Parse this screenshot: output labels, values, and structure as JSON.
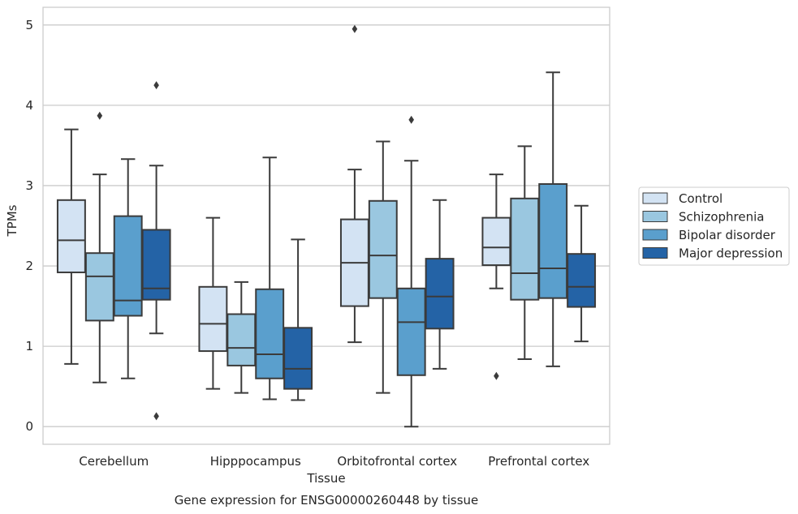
{
  "chart_data": {
    "type": "box",
    "title": "Gene expression for ENSG00000260448 by tissue",
    "xlabel": "Tissue",
    "ylabel": "TPMs",
    "ylim": [
      -0.22,
      5.22
    ],
    "yticks": [
      0,
      1,
      2,
      3,
      4,
      5
    ],
    "grid": "horizontal",
    "legend_position": "right",
    "categories": [
      "Cerebellum",
      "Hipppocampus",
      "Orbitofrontal cortex",
      "Prefrontal cortex"
    ],
    "series": [
      {
        "name": "Control",
        "color": "#d3e3f3",
        "boxes": [
          {
            "whislo": 0.78,
            "q1": 1.92,
            "med": 2.32,
            "q3": 2.82,
            "whishi": 3.7,
            "fliers": []
          },
          {
            "whislo": 0.47,
            "q1": 0.94,
            "med": 1.28,
            "q3": 1.74,
            "whishi": 2.6,
            "fliers": []
          },
          {
            "whislo": 1.05,
            "q1": 1.5,
            "med": 2.04,
            "q3": 2.58,
            "whishi": 3.2,
            "fliers": [
              4.95
            ]
          },
          {
            "whislo": 1.72,
            "q1": 2.01,
            "med": 2.23,
            "q3": 2.6,
            "whishi": 3.14,
            "fliers": [
              0.63
            ]
          }
        ]
      },
      {
        "name": "Schizophrenia",
        "color": "#9ac7e0",
        "boxes": [
          {
            "whislo": 0.55,
            "q1": 1.32,
            "med": 1.87,
            "q3": 2.16,
            "whishi": 3.14,
            "fliers": [
              3.87
            ]
          },
          {
            "whislo": 0.42,
            "q1": 0.76,
            "med": 0.98,
            "q3": 1.4,
            "whishi": 1.8,
            "fliers": []
          },
          {
            "whislo": 0.42,
            "q1": 1.6,
            "med": 2.13,
            "q3": 2.81,
            "whishi": 3.55,
            "fliers": []
          },
          {
            "whislo": 0.84,
            "q1": 1.58,
            "med": 1.91,
            "q3": 2.84,
            "whishi": 3.49,
            "fliers": []
          }
        ]
      },
      {
        "name": "Bipolar disorder",
        "color": "#5a9fcd",
        "boxes": [
          {
            "whislo": 0.6,
            "q1": 1.38,
            "med": 1.57,
            "q3": 2.62,
            "whishi": 3.33,
            "fliers": []
          },
          {
            "whislo": 0.34,
            "q1": 0.6,
            "med": 0.9,
            "q3": 1.71,
            "whishi": 3.35,
            "fliers": []
          },
          {
            "whislo": 0.0,
            "q1": 0.64,
            "med": 1.3,
            "q3": 1.72,
            "whishi": 3.31,
            "fliers": [
              3.82
            ]
          },
          {
            "whislo": 0.75,
            "q1": 1.6,
            "med": 1.97,
            "q3": 3.02,
            "whishi": 4.41,
            "fliers": []
          }
        ]
      },
      {
        "name": "Major depression",
        "color": "#2463a6",
        "boxes": [
          {
            "whislo": 1.16,
            "q1": 1.58,
            "med": 1.72,
            "q3": 2.45,
            "whishi": 3.25,
            "fliers": [
              4.25,
              0.13
            ]
          },
          {
            "whislo": 0.33,
            "q1": 0.47,
            "med": 0.72,
            "q3": 1.23,
            "whishi": 2.33,
            "fliers": []
          },
          {
            "whislo": 0.72,
            "q1": 1.22,
            "med": 1.62,
            "q3": 2.09,
            "whishi": 2.82,
            "fliers": []
          },
          {
            "whislo": 1.06,
            "q1": 1.49,
            "med": 1.74,
            "q3": 2.15,
            "whishi": 2.75,
            "fliers": []
          }
        ]
      }
    ]
  }
}
